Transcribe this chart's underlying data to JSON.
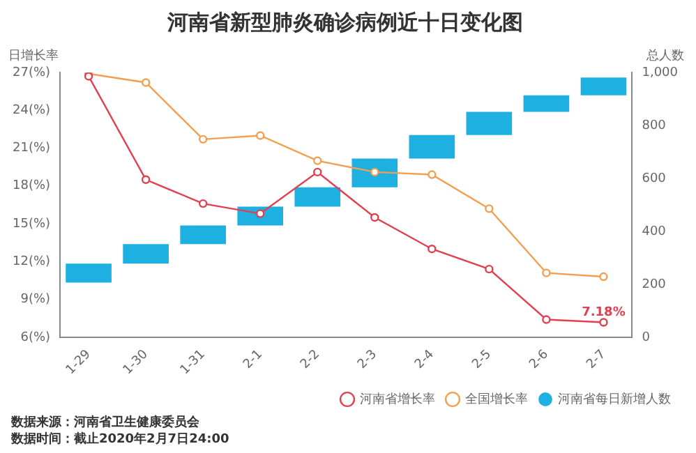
{
  "chart_data": {
    "type": "bar",
    "title": "河南省新型肺炎确诊病例近十日变化图",
    "ylabel": "日增长率",
    "y2label": "总人数",
    "categories": [
      "1-29",
      "1-30",
      "1-31",
      "2-1",
      "2-2",
      "2-3",
      "2-4",
      "2-5",
      "2-6",
      "2-7"
    ],
    "series": [
      {
        "name": "全国增长率",
        "type": "line",
        "color": "#f0a050",
        "values": [
          26.9,
          26.2,
          21.7,
          22.0,
          20.0,
          19.1,
          18.9,
          16.2,
          11.1,
          10.8
        ]
      },
      {
        "name": "河南省增长率",
        "type": "line",
        "color": "#e04050",
        "values": [
          26.7,
          18.5,
          16.6,
          15.8,
          19.1,
          15.5,
          13.0,
          11.4,
          7.4,
          7.18
        ],
        "value_labels": [
          null,
          null,
          null,
          null,
          null,
          null,
          null,
          null,
          null,
          "7.18%"
        ]
      },
      {
        "name": "河南省每日新增人数",
        "axis": "y2",
        "color": "#1eb0e0",
        "values": [
          72,
          74,
          70,
          71,
          73,
          109,
          89,
          87,
          63,
          67
        ],
        "base": [
          206,
          278,
          352,
          422,
          493,
          566,
          675,
          764,
          851,
          914
        ]
      }
    ],
    "ylim": [
      6,
      27
    ],
    "yticks": [
      {
        "value": 6,
        "label": "6(%)"
      },
      {
        "value": 9,
        "label": "9(%)"
      },
      {
        "value": 12,
        "label": "12(%)"
      },
      {
        "value": 15,
        "label": "15(%)"
      },
      {
        "value": 18,
        "label": "18(%)"
      },
      {
        "value": 21,
        "label": "21(%)"
      },
      {
        "value": 24,
        "label": "24(%)"
      },
      {
        "value": 27,
        "label": "27(%)"
      }
    ],
    "y2lim": [
      0,
      1000
    ],
    "y2ticks": [
      0,
      200,
      400,
      600,
      800,
      {
        "value": 1000,
        "label": "1,000"
      }
    ],
    "grid": false,
    "legend": "bottom right",
    "marker": "circle",
    "annotations": [
      "数据来源：河南省卫生健康委员会",
      "数据时间：截止2020年2月7日24:00"
    ]
  }
}
